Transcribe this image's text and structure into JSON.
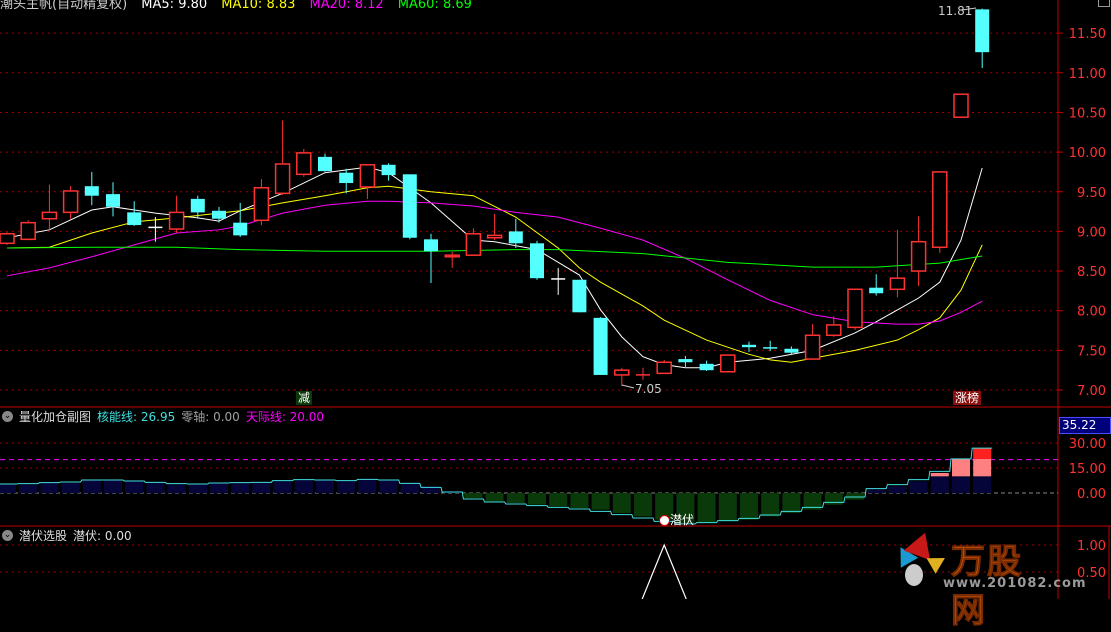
{
  "header": {
    "title": "潮头主帆(自动精复权)",
    "ma_labels": [
      {
        "text": "MA5: 9.80",
        "color": "#ffffff"
      },
      {
        "text": "MA10: 8.83",
        "color": "#ffff00"
      },
      {
        "text": "MA20: 8.12",
        "color": "#ff00ff"
      },
      {
        "text": "MA60: 8.69",
        "color": "#00ff00"
      }
    ]
  },
  "colors": {
    "up": "#ff3232",
    "down": "#54ffff",
    "grid": "#a00000",
    "axis_text": "#ff3232",
    "frame": "#c00000"
  },
  "main_panel": {
    "y_ticks": [
      "11.50",
      "11.00",
      "10.50",
      "10.00",
      "9.50",
      "9.00",
      "8.50",
      "8.00",
      "7.50",
      "7.00"
    ],
    "y_tick_values": [
      11.5,
      11.0,
      10.5,
      10.0,
      9.5,
      9.0,
      8.5,
      8.0,
      7.5,
      7.0
    ],
    "high_label": "11.81",
    "low_label": "7.05",
    "marker_reduce": "减",
    "marker_limit_up": "涨榜"
  },
  "chart_data": [
    {
      "type": "candlestick",
      "ylim": [
        6.97,
        11.92
      ],
      "grid": true,
      "candles": [
        [
          8.85,
          8.99,
          8.83,
          8.97
        ],
        [
          8.9,
          9.14,
          8.89,
          9.11
        ],
        [
          9.16,
          9.59,
          9.02,
          9.24
        ],
        [
          9.24,
          9.57,
          9.16,
          9.51
        ],
        [
          9.57,
          9.75,
          9.33,
          9.45
        ],
        [
          9.47,
          9.62,
          9.19,
          9.31
        ],
        [
          9.24,
          9.38,
          9.07,
          9.08
        ],
        [
          9.06,
          9.18,
          8.87,
          9.06
        ],
        [
          9.03,
          9.45,
          8.98,
          9.24
        ],
        [
          9.41,
          9.45,
          9.16,
          9.24
        ],
        [
          9.26,
          9.31,
          9.11,
          9.16
        ],
        [
          9.11,
          9.36,
          8.93,
          8.95
        ],
        [
          9.14,
          9.66,
          9.08,
          9.55
        ],
        [
          9.48,
          10.4,
          9.46,
          9.85
        ],
        [
          9.72,
          10.04,
          9.69,
          9.99
        ],
        [
          9.94,
          9.98,
          9.75,
          9.76
        ],
        [
          9.74,
          9.79,
          9.48,
          9.61
        ],
        [
          9.56,
          9.84,
          9.41,
          9.84
        ],
        [
          9.84,
          9.86,
          9.64,
          9.71
        ],
        [
          9.72,
          9.72,
          8.9,
          8.92
        ],
        [
          8.9,
          8.97,
          8.35,
          8.75
        ],
        [
          8.68,
          8.74,
          8.54,
          8.7
        ],
        [
          8.7,
          9.04,
          8.69,
          8.97
        ],
        [
          8.92,
          9.22,
          8.89,
          8.95
        ],
        [
          9.0,
          9.16,
          8.79,
          8.85
        ],
        [
          8.85,
          8.88,
          8.39,
          8.41
        ],
        [
          8.41,
          8.54,
          8.2,
          8.41
        ],
        [
          8.39,
          8.39,
          7.98,
          7.98
        ],
        [
          7.91,
          7.92,
          7.19,
          7.19
        ],
        [
          7.19,
          7.28,
          7.05,
          7.25
        ],
        [
          7.19,
          7.28,
          7.13,
          7.2
        ],
        [
          7.21,
          7.38,
          7.21,
          7.35
        ],
        [
          7.39,
          7.43,
          7.29,
          7.35
        ],
        [
          7.33,
          7.37,
          7.24,
          7.25
        ],
        [
          7.23,
          7.45,
          7.23,
          7.44
        ],
        [
          7.57,
          7.61,
          7.48,
          7.54
        ],
        [
          7.54,
          7.62,
          7.49,
          7.53
        ],
        [
          7.52,
          7.55,
          7.44,
          7.47
        ],
        [
          7.39,
          7.83,
          7.38,
          7.69
        ],
        [
          7.69,
          7.93,
          7.67,
          7.82
        ],
        [
          7.79,
          8.27,
          7.76,
          8.27
        ],
        [
          8.29,
          8.46,
          8.19,
          8.22
        ],
        [
          8.27,
          9.02,
          8.17,
          8.41
        ],
        [
          8.5,
          9.19,
          8.31,
          8.87
        ],
        [
          8.8,
          9.75,
          8.73,
          9.75
        ],
        [
          10.44,
          10.73,
          10.44,
          10.73
        ],
        [
          11.8,
          11.81,
          11.06,
          11.26
        ]
      ],
      "candle_fields": [
        "open",
        "high",
        "low",
        "close"
      ],
      "series": [
        {
          "name": "MA5",
          "color": "#ffffff",
          "points": [
            [
              0,
              8.92
            ],
            [
              2,
              9.02
            ],
            [
              4,
              9.27
            ],
            [
              5,
              9.31
            ],
            [
              7,
              9.23
            ],
            [
              9,
              9.17
            ],
            [
              10,
              9.13
            ],
            [
              11,
              9.26
            ],
            [
              13,
              9.48
            ],
            [
              15,
              9.74
            ],
            [
              17,
              9.81
            ],
            [
              18,
              9.74
            ],
            [
              20,
              9.36
            ],
            [
              22,
              8.89
            ],
            [
              23,
              8.87
            ],
            [
              25,
              8.77
            ],
            [
              26,
              8.61
            ],
            [
              27,
              8.45
            ],
            [
              28,
              8.01
            ],
            [
              29,
              7.67
            ],
            [
              30,
              7.42
            ],
            [
              31,
              7.32
            ],
            [
              32,
              7.28
            ],
            [
              33,
              7.28
            ],
            [
              34,
              7.35
            ],
            [
              36,
              7.4
            ],
            [
              38,
              7.5
            ],
            [
              40,
              7.72
            ],
            [
              41,
              7.86
            ],
            [
              42,
              8.01
            ],
            [
              43,
              8.16
            ],
            [
              44,
              8.36
            ],
            [
              45,
              8.89
            ],
            [
              46,
              9.8
            ]
          ]
        },
        {
          "name": "MA10",
          "color": "#ffff00",
          "points": [
            [
              0,
              8.79
            ],
            [
              2,
              8.8
            ],
            [
              4,
              8.98
            ],
            [
              6,
              9.12
            ],
            [
              8,
              9.17
            ],
            [
              10,
              9.23
            ],
            [
              11,
              9.26
            ],
            [
              13,
              9.36
            ],
            [
              15,
              9.45
            ],
            [
              17,
              9.55
            ],
            [
              18,
              9.57
            ],
            [
              20,
              9.5
            ],
            [
              22,
              9.45
            ],
            [
              24,
              9.18
            ],
            [
              26,
              8.79
            ],
            [
              27,
              8.54
            ],
            [
              28,
              8.36
            ],
            [
              30,
              8.06
            ],
            [
              31,
              7.88
            ],
            [
              33,
              7.63
            ],
            [
              35,
              7.45
            ],
            [
              36,
              7.38
            ],
            [
              37,
              7.35
            ],
            [
              38,
              7.4
            ],
            [
              40,
              7.5
            ],
            [
              42,
              7.63
            ],
            [
              43,
              7.76
            ],
            [
              44,
              7.91
            ],
            [
              45,
              8.26
            ],
            [
              46,
              8.83
            ]
          ]
        },
        {
          "name": "MA20",
          "color": "#ff00ff",
          "points": [
            [
              0,
              8.44
            ],
            [
              2,
              8.54
            ],
            [
              4,
              8.68
            ],
            [
              6,
              8.83
            ],
            [
              8,
              8.98
            ],
            [
              10,
              9.02
            ],
            [
              11,
              9.07
            ],
            [
              13,
              9.23
            ],
            [
              15,
              9.33
            ],
            [
              17,
              9.38
            ],
            [
              18,
              9.38
            ],
            [
              20,
              9.36
            ],
            [
              22,
              9.32
            ],
            [
              24,
              9.24
            ],
            [
              26,
              9.18
            ],
            [
              28,
              9.04
            ],
            [
              30,
              8.89
            ],
            [
              32,
              8.66
            ],
            [
              34,
              8.39
            ],
            [
              36,
              8.13
            ],
            [
              38,
              7.95
            ],
            [
              40,
              7.86
            ],
            [
              42,
              7.83
            ],
            [
              43,
              7.83
            ],
            [
              44,
              7.87
            ],
            [
              45,
              7.98
            ],
            [
              46,
              8.12
            ]
          ]
        },
        {
          "name": "MA60",
          "color": "#00ff00",
          "points": [
            [
              0,
              8.79
            ],
            [
              4,
              8.8
            ],
            [
              8,
              8.8
            ],
            [
              11,
              8.77
            ],
            [
              15,
              8.75
            ],
            [
              20,
              8.75
            ],
            [
              24,
              8.77
            ],
            [
              26,
              8.77
            ],
            [
              30,
              8.72
            ],
            [
              34,
              8.61
            ],
            [
              38,
              8.55
            ],
            [
              41,
              8.55
            ],
            [
              44,
              8.6
            ],
            [
              46,
              8.69
            ]
          ]
        }
      ]
    },
    {
      "type": "bar",
      "title": "量化加仓副图",
      "ylim": [
        -22,
        37
      ],
      "y_ticks": [
        "30.00",
        "15.00",
        "0.00"
      ],
      "y_tick_values": [
        30,
        15,
        0
      ],
      "reference_line": 20,
      "values": [
        5,
        5,
        6,
        6,
        8,
        8,
        7,
        6,
        5,
        5,
        6,
        6,
        6,
        7,
        8,
        8,
        7,
        8,
        8,
        6,
        4,
        1,
        -3,
        -5,
        -6,
        -7,
        -8,
        -9,
        -10,
        -12,
        -14,
        -16,
        -18,
        -18,
        -17,
        -16,
        -14,
        -12,
        -10,
        -7,
        -4,
        2,
        4,
        7,
        12,
        20.4,
        27
      ],
      "line_values": [
        5.4,
        5.6,
        6.2,
        6.6,
        7.8,
        7.8,
        7.2,
        6.4,
        5.6,
        5.4,
        6,
        6.2,
        6.4,
        7.4,
        8,
        7.8,
        7.4,
        8.2,
        7.8,
        5.8,
        3.4,
        0.6,
        -3.6,
        -5.4,
        -6.6,
        -7.6,
        -8.6,
        -9.6,
        -11,
        -13,
        -15,
        -17,
        -18.5,
        -17.8,
        -16.6,
        -15.2,
        -13.2,
        -11,
        -8.6,
        -5.6,
        -2.4,
        2.6,
        5,
        8,
        13,
        20.5,
        26.95
      ]
    },
    {
      "type": "line",
      "title": "潜伏选股",
      "ylim": [
        0,
        1.1
      ],
      "y_ticks": [
        "1.00",
        "0.50"
      ],
      "y_tick_values": [
        1.0,
        0.5
      ],
      "spike_index": 31,
      "values_peak": 1.0
    }
  ],
  "sub_panel": {
    "title": "量化加仓副图",
    "labels": [
      {
        "name": "核能线",
        "value": "核能线: 26.95",
        "color": "#40e0e0"
      },
      {
        "name": "零轴",
        "value": "零轴: 0.00",
        "color": "#a0a0a0"
      },
      {
        "name": "天际线",
        "value": "天际线: 20.00",
        "color": "#ff00ff"
      }
    ],
    "current_value": "35.22",
    "signal_label": "潜伏"
  },
  "bottom_panel": {
    "title": "潜伏选股",
    "value": "潜伏: 0.00"
  },
  "watermark_logo": {
    "name": "万股网",
    "url": "www.201082.com"
  }
}
